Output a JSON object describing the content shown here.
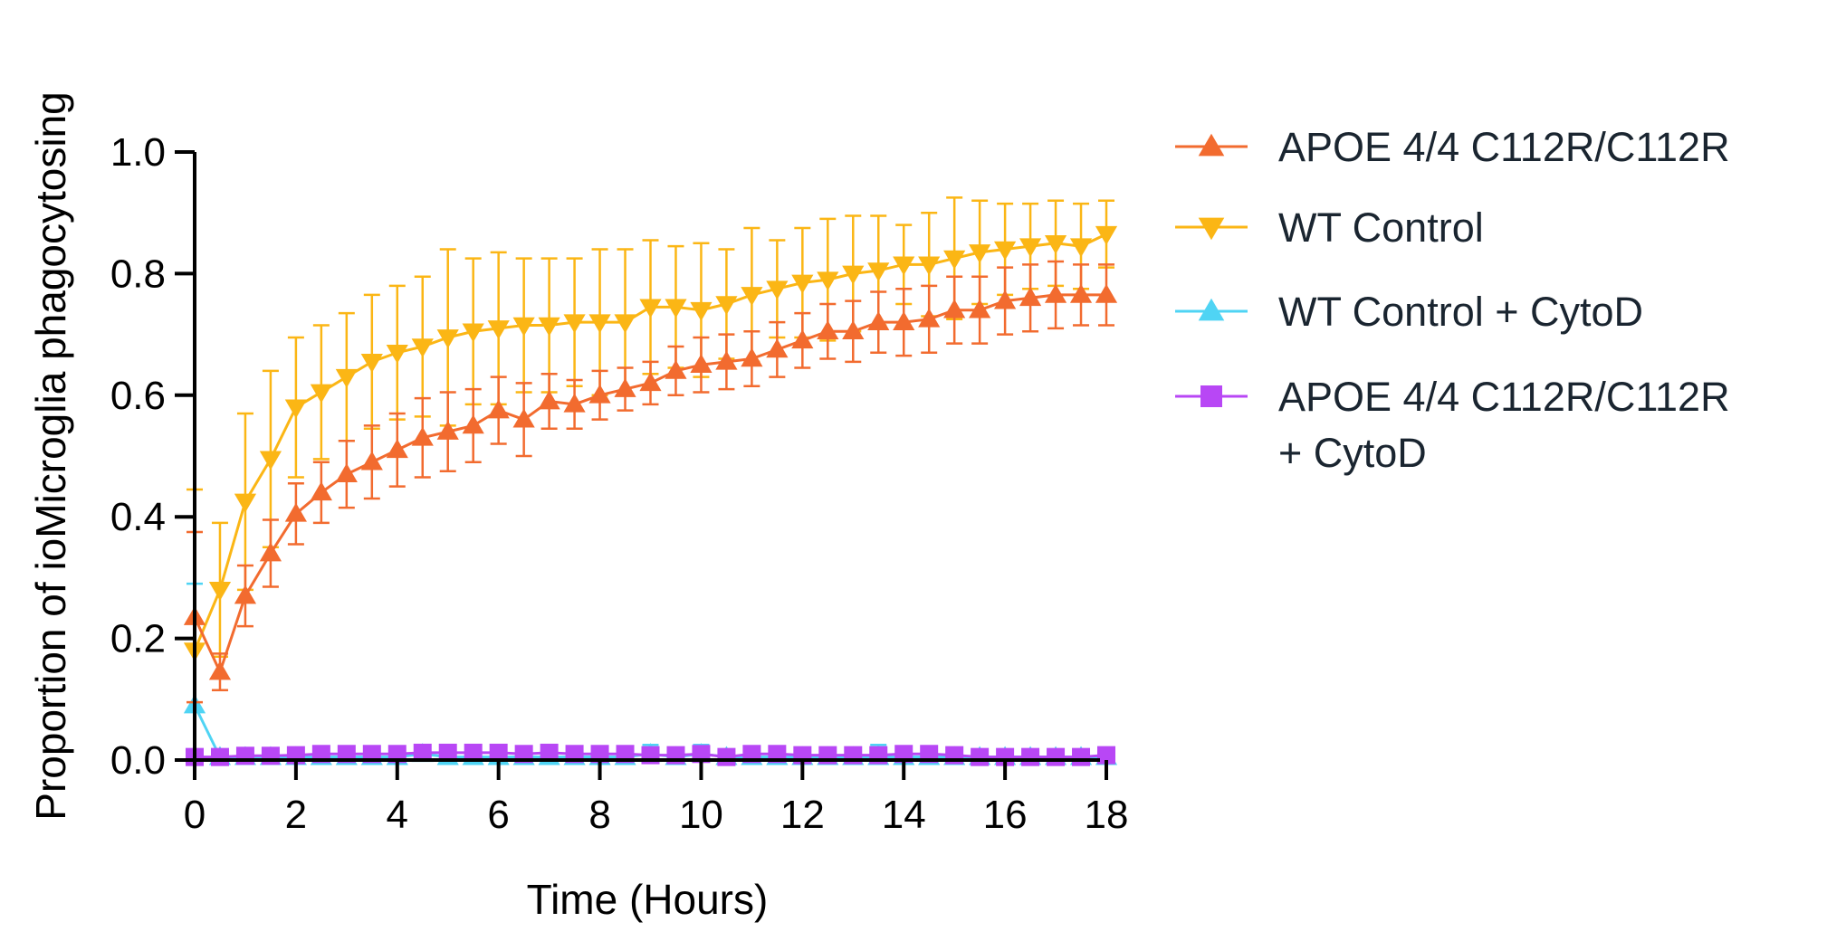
{
  "chart_data": {
    "type": "line",
    "title": "",
    "xlabel": "Time (Hours)",
    "ylabel": "Proportion of  ioMicroglia phagocytosing",
    "xlim": [
      0,
      18
    ],
    "ylim": [
      0,
      1.0
    ],
    "x_ticks": [
      0,
      2,
      4,
      6,
      8,
      10,
      12,
      14,
      16,
      18
    ],
    "x_tick_labels": [
      "0",
      "2",
      "4",
      "6",
      "8",
      "10",
      "12",
      "14",
      "16",
      "18"
    ],
    "y_ticks": [
      0,
      0.2,
      0.4,
      0.6,
      0.8,
      1.0
    ],
    "y_tick_labels": [
      "0.0",
      "0.2",
      "0.4",
      "0.6",
      "0.8",
      "1.0"
    ],
    "grid": false,
    "legend_position": "right",
    "x": [
      0,
      0.5,
      1,
      1.5,
      2,
      2.5,
      3,
      3.5,
      4,
      4.5,
      5,
      5.5,
      6,
      6.5,
      7,
      7.5,
      8,
      8.5,
      9,
      9.5,
      10,
      10.5,
      11,
      11.5,
      12,
      12.5,
      13,
      13.5,
      14,
      14.5,
      15,
      15.5,
      16,
      16.5,
      17,
      17.5,
      18
    ],
    "series": [
      {
        "name": "APOE 4/4 C112R/C112R",
        "legend_lines": [
          "APOE 4/4 C112R/C112R"
        ],
        "color": "#f26b2f",
        "marker": "triangle-up",
        "values": [
          0.235,
          0.145,
          0.27,
          0.34,
          0.405,
          0.44,
          0.47,
          0.49,
          0.51,
          0.53,
          0.54,
          0.55,
          0.575,
          0.56,
          0.59,
          0.585,
          0.6,
          0.61,
          0.62,
          0.64,
          0.65,
          0.655,
          0.66,
          0.675,
          0.69,
          0.705,
          0.705,
          0.72,
          0.72,
          0.725,
          0.74,
          0.74,
          0.755,
          0.76,
          0.765,
          0.765,
          0.765
        ],
        "errors": [
          0.14,
          0.03,
          0.05,
          0.055,
          0.05,
          0.05,
          0.055,
          0.06,
          0.06,
          0.065,
          0.065,
          0.06,
          0.055,
          0.06,
          0.045,
          0.04,
          0.04,
          0.035,
          0.035,
          0.04,
          0.045,
          0.045,
          0.045,
          0.045,
          0.045,
          0.045,
          0.05,
          0.05,
          0.055,
          0.055,
          0.055,
          0.055,
          0.055,
          0.055,
          0.055,
          0.05,
          0.05
        ]
      },
      {
        "name": "WT Control",
        "legend_lines": [
          "WT Control"
        ],
        "color": "#fbb615",
        "marker": "triangle-down",
        "values": [
          0.18,
          0.28,
          0.425,
          0.495,
          0.58,
          0.605,
          0.63,
          0.655,
          0.67,
          0.68,
          0.695,
          0.705,
          0.71,
          0.715,
          0.715,
          0.72,
          0.72,
          0.72,
          0.745,
          0.745,
          0.74,
          0.75,
          0.765,
          0.775,
          0.785,
          0.79,
          0.8,
          0.805,
          0.815,
          0.815,
          0.825,
          0.835,
          0.84,
          0.845,
          0.85,
          0.845,
          0.865
        ],
        "errors": [
          0.265,
          0.11,
          0.145,
          0.145,
          0.115,
          0.11,
          0.105,
          0.11,
          0.11,
          0.115,
          0.145,
          0.12,
          0.125,
          0.11,
          0.11,
          0.105,
          0.12,
          0.12,
          0.11,
          0.1,
          0.11,
          0.09,
          0.11,
          0.08,
          0.09,
          0.1,
          0.095,
          0.09,
          0.065,
          0.085,
          0.1,
          0.085,
          0.075,
          0.07,
          0.07,
          0.07,
          0.055
        ]
      },
      {
        "name": "WT Control + CytoD",
        "legend_lines": [
          "WT Control + CytoD"
        ],
        "color": "#4fd4f4",
        "marker": "triangle-up",
        "values": [
          0.09,
          0.005,
          0.005,
          0.005,
          0.005,
          0.005,
          0.005,
          0.005,
          0.005,
          0.01,
          0.005,
          0.005,
          0.005,
          0.005,
          0.005,
          0.005,
          0.005,
          0.005,
          0.01,
          0.005,
          0.01,
          0.005,
          0.005,
          0.005,
          0.005,
          0.005,
          0.005,
          0.005,
          0.005,
          0.005,
          0.005,
          0.005,
          0.005,
          0.005,
          0.005,
          0.005,
          0.005
        ],
        "errors": [
          0.2,
          0.01,
          0.01,
          0.01,
          0.01,
          0.01,
          0.01,
          0.01,
          0.01,
          0.015,
          0.01,
          0.01,
          0.01,
          0.01,
          0.01,
          0.01,
          0.01,
          0.01,
          0.015,
          0.01,
          0.015,
          0.01,
          0.01,
          0.01,
          0.01,
          0.015,
          0.01,
          0.02,
          0.01,
          0.01,
          0.01,
          0.01,
          0.01,
          0.01,
          0.01,
          0.01,
          0.01
        ]
      },
      {
        "name": "APOE 4/4 C112R/C112R + CytoD",
        "legend_lines": [
          "APOE 4/4 C112R/C112R",
          "+ CytoD"
        ],
        "color": "#b847f5",
        "marker": "square",
        "values": [
          0.005,
          0.005,
          0.007,
          0.007,
          0.008,
          0.01,
          0.01,
          0.01,
          0.01,
          0.012,
          0.012,
          0.012,
          0.012,
          0.01,
          0.012,
          0.01,
          0.01,
          0.01,
          0.008,
          0.008,
          0.01,
          0.005,
          0.01,
          0.01,
          0.008,
          0.008,
          0.008,
          0.008,
          0.01,
          0.01,
          0.008,
          0.005,
          0.005,
          0.005,
          0.005,
          0.005,
          0.008
        ],
        "errors": [
          0.005,
          0.005,
          0.005,
          0.005,
          0.005,
          0.005,
          0.005,
          0.005,
          0.005,
          0.005,
          0.005,
          0.005,
          0.005,
          0.005,
          0.005,
          0.005,
          0.005,
          0.005,
          0.005,
          0.005,
          0.005,
          0.005,
          0.005,
          0.005,
          0.005,
          0.005,
          0.005,
          0.005,
          0.005,
          0.005,
          0.005,
          0.005,
          0.005,
          0.005,
          0.005,
          0.005,
          0.005
        ]
      }
    ]
  }
}
